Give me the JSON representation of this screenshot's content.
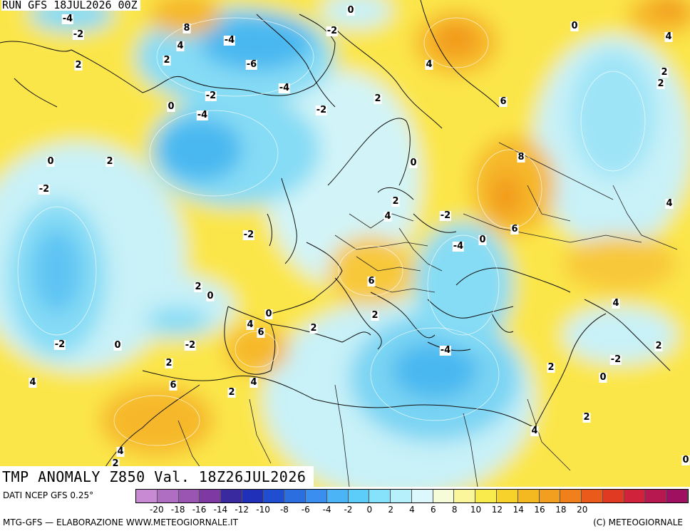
{
  "header": {
    "run_label": "RUN GFS 18JUL2026 00Z"
  },
  "title": {
    "text": "TMP ANOMALY Z850 Val. 18Z26JUL2026"
  },
  "footer": {
    "data_source": "DATI NCEP GFS 0.25°",
    "credit_left": "MTG-GFS — ELABORAZIONE WWW.METEOGIORNALE.IT",
    "credit_right": "(C) METEOGIORNALE"
  },
  "legend": {
    "colors": [
      "#c88ad2",
      "#b06ec2",
      "#9a55b2",
      "#7e3aa2",
      "#3a2aa0",
      "#2030b8",
      "#1f4ed0",
      "#2a6ee0",
      "#3a8ef0",
      "#4ab4f6",
      "#5ccdf8",
      "#86e2fa",
      "#b6f0fb",
      "#dcf8fc",
      "#f6fbd8",
      "#fbf59c",
      "#faeb4c",
      "#f7d22a",
      "#f4b820",
      "#f29e1e",
      "#ef801c",
      "#ea5a1a",
      "#e03a22",
      "#d0223a",
      "#b81850",
      "#a01060"
    ],
    "tick_labels": [
      "-20",
      "-18",
      "-16",
      "-14",
      "-12",
      "-10",
      "-8",
      "-6",
      "-4",
      "-2",
      "0",
      "2",
      "4",
      "6",
      "8",
      "10",
      "12",
      "14",
      "16",
      "18",
      "20"
    ]
  },
  "contour_labels": [
    {
      "t": "-4"
    },
    {
      "t": "-2"
    },
    {
      "t": "8"
    },
    {
      "t": "4"
    },
    {
      "t": "2"
    },
    {
      "t": "2"
    },
    {
      "t": "-4"
    },
    {
      "t": "-6"
    },
    {
      "t": "-2"
    },
    {
      "t": "-4"
    },
    {
      "t": "0"
    },
    {
      "t": "-2"
    },
    {
      "t": "-4"
    },
    {
      "t": "-2"
    },
    {
      "t": "0"
    },
    {
      "t": "4"
    },
    {
      "t": "0"
    },
    {
      "t": "2"
    },
    {
      "t": "2"
    },
    {
      "t": "6"
    },
    {
      "t": "2"
    },
    {
      "t": "2"
    },
    {
      "t": "0"
    },
    {
      "t": "2"
    },
    {
      "t": "0"
    },
    {
      "t": "8"
    },
    {
      "t": "-2"
    },
    {
      "t": "2"
    },
    {
      "t": "4"
    },
    {
      "t": "-2"
    },
    {
      "t": "-2"
    },
    {
      "t": "0"
    },
    {
      "t": "-4"
    },
    {
      "t": "6"
    },
    {
      "t": "6"
    },
    {
      "t": "4"
    },
    {
      "t": "2"
    },
    {
      "t": "0"
    },
    {
      "t": "0"
    },
    {
      "t": "2"
    },
    {
      "t": "4"
    },
    {
      "t": "6"
    },
    {
      "t": "-2"
    },
    {
      "t": "0"
    },
    {
      "t": "-2"
    },
    {
      "t": "4"
    },
    {
      "t": "2"
    },
    {
      "t": "6"
    },
    {
      "t": "4"
    },
    {
      "t": "-4"
    },
    {
      "t": "2"
    },
    {
      "t": "-2"
    },
    {
      "t": "2"
    },
    {
      "t": "0"
    },
    {
      "t": "2"
    },
    {
      "t": "4"
    },
    {
      "t": "4"
    },
    {
      "t": "2"
    },
    {
      "t": "0"
    },
    {
      "t": "2"
    },
    {
      "t": "4"
    },
    {
      "t": "4"
    },
    {
      "t": "2"
    }
  ]
}
